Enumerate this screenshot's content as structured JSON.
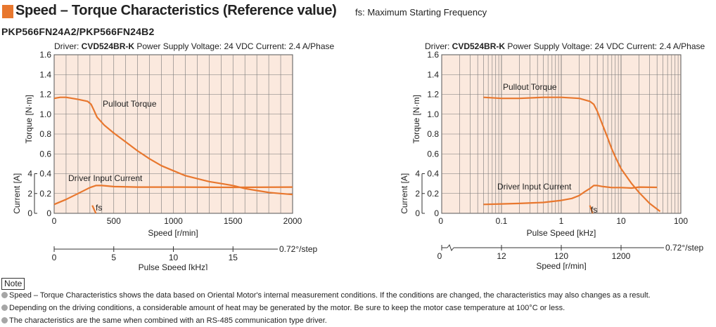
{
  "header": {
    "title": "Speed – Torque Characteristics (Reference value)",
    "note": "fs: Maximum Starting Frequency"
  },
  "model": "PKP566FN24A2/PKP566FN24B2",
  "colors": {
    "accent": "#e8772e",
    "plot_bg": "#fbe9de",
    "grid": "#777777"
  },
  "chart_data": [
    {
      "type": "line",
      "x_scale": "linear",
      "info": {
        "driver_prefix": "Driver: ",
        "driver": "CVD524BR-K",
        "rest": "  Power Supply Voltage: 24 VDC  Current: 2.4 A/Phase"
      },
      "xlabel": "Speed [r/min]",
      "xlim": [
        0,
        2000
      ],
      "xticks": [
        "0",
        "500",
        "1000",
        "1500",
        "2000"
      ],
      "ylabel": "Torque [N·m]",
      "ylim": [
        0,
        1.6
      ],
      "yticks": [
        "0",
        "0.2",
        "0.4",
        "0.6",
        "0.8",
        "1.0",
        "1.2",
        "1.4",
        "1.6"
      ],
      "current_label": "Current [A]",
      "current_ticks": [
        "0",
        "2",
        "4"
      ],
      "secondary_axis": {
        "label": "Pulse Speed [kHz]",
        "ticks": [
          "0",
          "5",
          "10",
          "15"
        ],
        "end_label": "0.72°/step"
      },
      "annotations": {
        "pullout": "Pullout Torque",
        "current": "Driver Input Current",
        "fs": "fs"
      },
      "series": [
        {
          "name": "Pullout Torque",
          "x": [
            0,
            50,
            100,
            200,
            280,
            310,
            330,
            360,
            420,
            500,
            600,
            700,
            800,
            900,
            1000,
            1100,
            1200,
            1300,
            1400,
            1500,
            1600,
            1700,
            1800,
            1900,
            2000
          ],
          "y": [
            1.16,
            1.17,
            1.17,
            1.15,
            1.13,
            1.1,
            1.05,
            0.97,
            0.89,
            0.81,
            0.72,
            0.63,
            0.55,
            0.48,
            0.43,
            0.38,
            0.35,
            0.32,
            0.3,
            0.28,
            0.25,
            0.23,
            0.21,
            0.2,
            0.19
          ]
        },
        {
          "name": "Driver Input Current",
          "x": [
            0,
            100,
            200,
            300,
            350,
            400,
            500,
            700,
            1000,
            1500,
            2000
          ],
          "y": [
            0.09,
            0.14,
            0.2,
            0.26,
            0.28,
            0.28,
            0.27,
            0.265,
            0.265,
            0.262,
            0.265
          ]
        },
        {
          "name": "fs",
          "x": [
            320,
            350
          ],
          "y": [
            0.08,
            0.0
          ]
        }
      ]
    },
    {
      "type": "line",
      "x_scale": "log",
      "info": {
        "driver_prefix": "Driver: ",
        "driver": "CVD524BR-K",
        "rest": "  Power Supply Voltage: 24 VDC  Current: 2.4 A/Phase"
      },
      "xlabel": "Pulse Speed [kHz]",
      "xlim": [
        0.01,
        100
      ],
      "xticks": [
        "0.1",
        "1",
        "10",
        "100"
      ],
      "ylabel": "Torque [N·m]",
      "ylim": [
        0,
        1.6
      ],
      "yticks": [
        "0",
        "0.2",
        "0.4",
        "0.6",
        "0.8",
        "1.0",
        "1.2",
        "1.4",
        "1.6"
      ],
      "current_label": "Current [A]",
      "current_ticks": [
        "0",
        "2",
        "4"
      ],
      "secondary_axis": {
        "label": "Speed [r/min]",
        "ticks": [
          "0",
          "12",
          "120",
          "1200"
        ],
        "end_label": "0.72°/step"
      },
      "annotations": {
        "pullout": "Pullout Torque",
        "current": "Driver Input Current",
        "fs": "fs"
      },
      "series": [
        {
          "name": "Pullout Torque",
          "x": [
            0.05,
            0.1,
            0.2,
            0.5,
            1,
            2,
            3,
            3.5,
            4,
            5,
            6,
            7,
            8,
            10,
            15,
            20,
            30,
            45
          ],
          "y": [
            1.17,
            1.16,
            1.16,
            1.17,
            1.17,
            1.16,
            1.13,
            1.1,
            1.03,
            0.88,
            0.76,
            0.65,
            0.57,
            0.45,
            0.3,
            0.21,
            0.1,
            0.02
          ]
        },
        {
          "name": "Driver Input Current",
          "x": [
            0.05,
            0.1,
            0.2,
            0.5,
            1,
            1.5,
            2,
            2.5,
            3,
            3.5,
            4,
            5,
            7,
            10,
            15,
            20,
            40
          ],
          "y": [
            0.09,
            0.095,
            0.1,
            0.11,
            0.13,
            0.15,
            0.18,
            0.22,
            0.25,
            0.28,
            0.28,
            0.27,
            0.26,
            0.26,
            0.255,
            0.265,
            0.262
          ]
        },
        {
          "name": "fs",
          "x": [
            3.0,
            3.35
          ],
          "y": [
            0.08,
            0.0
          ]
        }
      ]
    }
  ],
  "notes": {
    "label": "Note",
    "items": [
      "Speed – Torque Characteristics shows the data based on Oriental Motor's internal measurement conditions. If the conditions are changed, the characteristics may also changes as a result.",
      "Depending on the driving conditions, a considerable amount of heat may be generated by the motor. Be sure to keep the motor case temperature at 100°C or less.",
      "The characteristics are the same when combined with an RS-485 communication type driver."
    ]
  }
}
